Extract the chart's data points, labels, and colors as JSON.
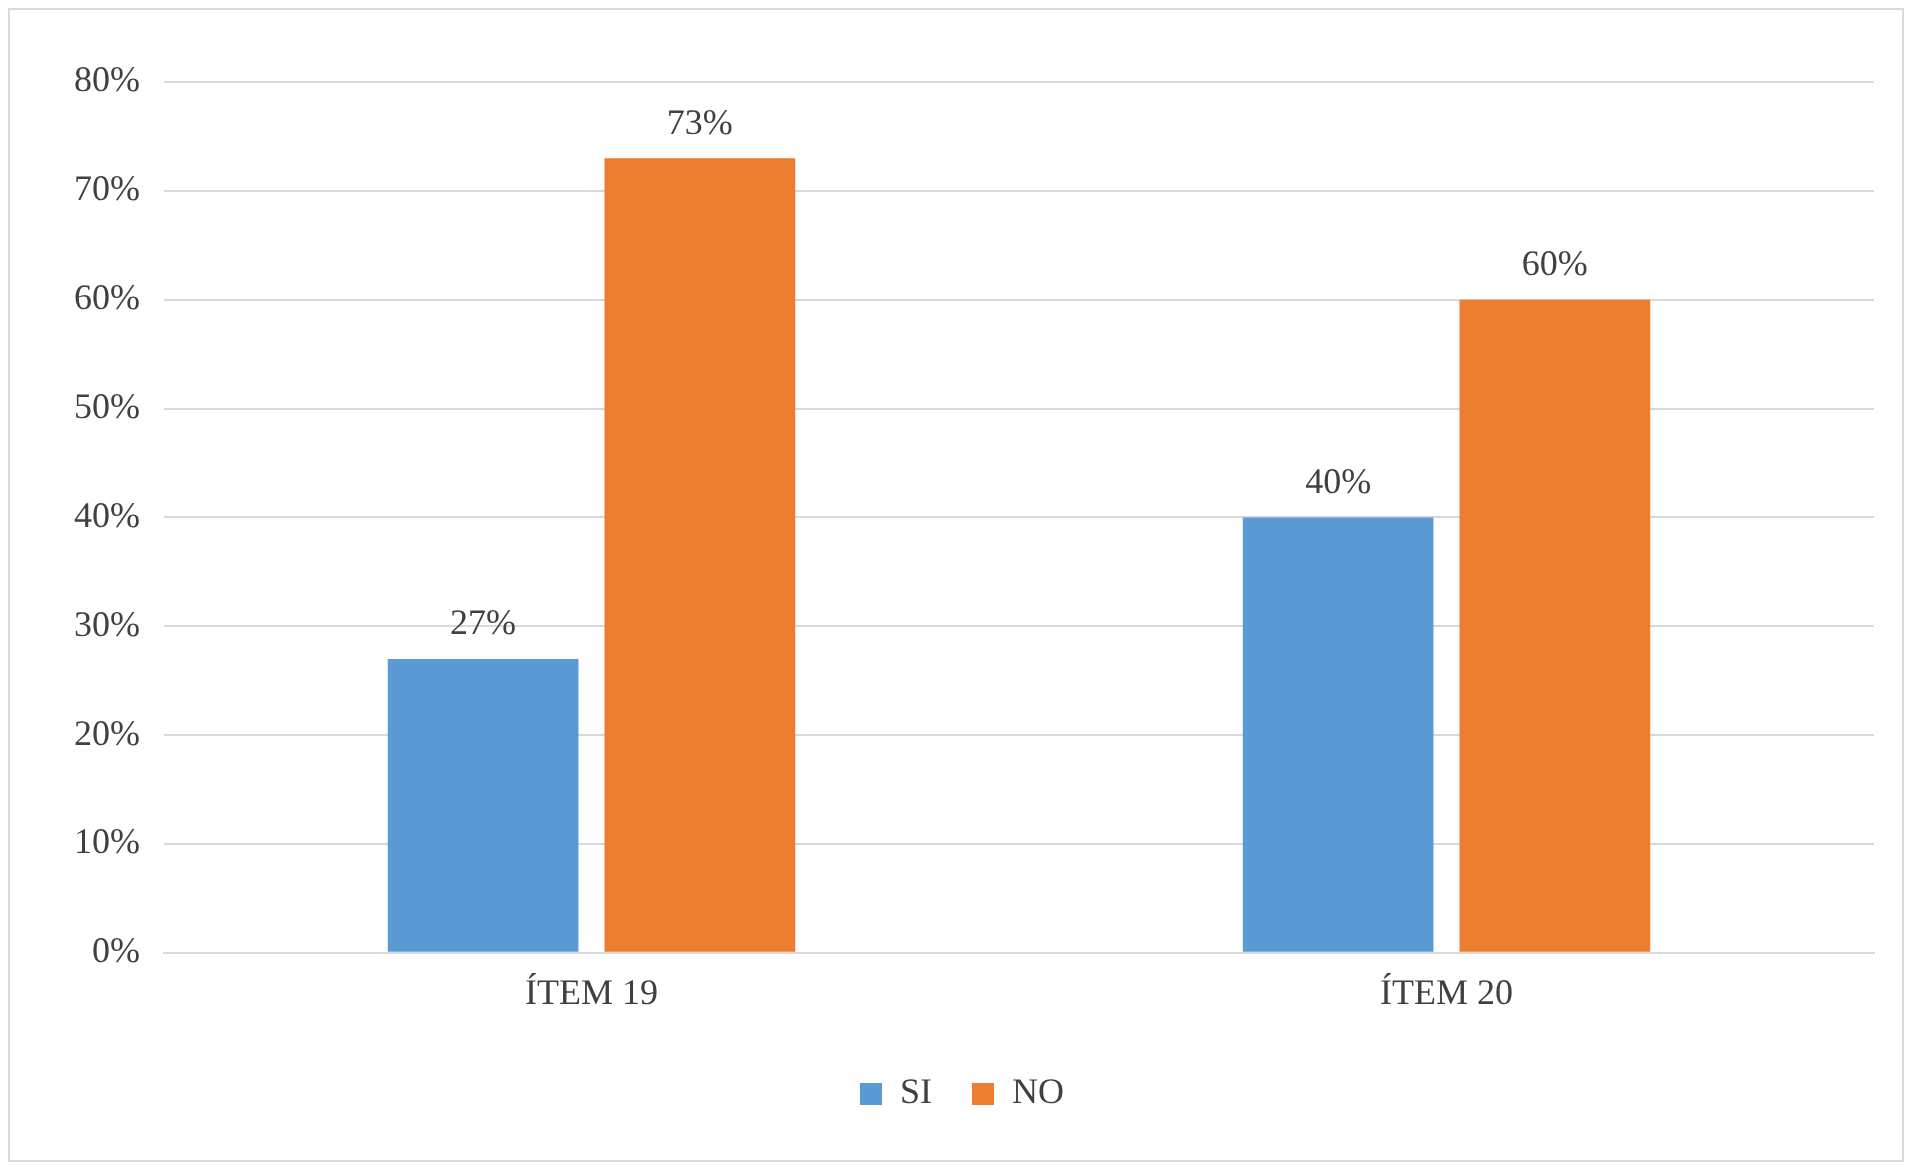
{
  "chart_data": {
    "type": "bar",
    "categories": [
      "ÍTEM 19",
      "ÍTEM 20"
    ],
    "series": [
      {
        "name": "SI",
        "color": "#5b9bd5",
        "values": [
          27,
          40
        ],
        "value_labels": [
          "27%",
          "40%"
        ]
      },
      {
        "name": "NO",
        "color": "#ed7d31",
        "values": [
          73,
          60
        ],
        "value_labels": [
          "73%",
          "60%"
        ]
      }
    ],
    "ylim": [
      0,
      80
    ],
    "yticks": [
      {
        "value": 0,
        "label": "0%"
      },
      {
        "value": 10,
        "label": "10%"
      },
      {
        "value": 20,
        "label": "20%"
      },
      {
        "value": 30,
        "label": "30%"
      },
      {
        "value": 40,
        "label": "40%"
      },
      {
        "value": 50,
        "label": "50%"
      },
      {
        "value": 60,
        "label": "60%"
      },
      {
        "value": 70,
        "label": "70%"
      },
      {
        "value": 80,
        "label": "80%"
      }
    ],
    "grid": "y",
    "legend": "bottom"
  }
}
